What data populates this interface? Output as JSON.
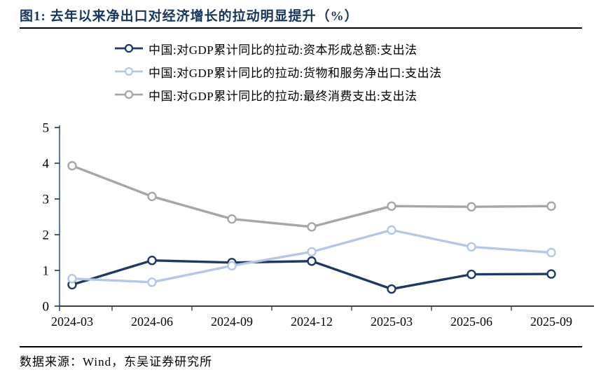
{
  "header": {
    "title": "图1:  去年以来净出口对经济增长的拉动明显提升（%）"
  },
  "footer": {
    "source": "数据来源：Wind，东吴证券研究所"
  },
  "chart_data": {
    "type": "line",
    "title": "去年以来净出口对经济增长的拉动明显提升（%）",
    "categories": [
      "2024-03",
      "2024-06",
      "2024-09",
      "2024-12",
      "2025-03",
      "2025-06",
      "2025-09"
    ],
    "series": [
      {
        "name": "中国:对GDP累计同比的拉动:资本形成总额:支出法",
        "color": "#1F3864",
        "values": [
          0.6,
          1.28,
          1.22,
          1.26,
          0.48,
          0.89,
          0.9
        ]
      },
      {
        "name": "中国:对GDP累计同比的拉动:货物和服务净出口:支出法",
        "color": "#B4C7E7",
        "values": [
          0.77,
          0.67,
          1.13,
          1.52,
          2.13,
          1.66,
          1.5
        ]
      },
      {
        "name": "中国:对GDP累计同比的拉动:最终消费支出:支出法",
        "color": "#A6A6A6",
        "values": [
          3.93,
          3.07,
          2.44,
          2.22,
          2.8,
          2.78,
          2.8
        ]
      }
    ],
    "xlabel": "",
    "ylabel": "",
    "ylim": [
      0,
      5
    ],
    "yticks": [
      0,
      1,
      2,
      3,
      4,
      5
    ],
    "grid": false,
    "legend_position": "top",
    "marker": "open-circle",
    "axis_colors": {
      "y_axis": "#2E5C8A",
      "x_axis": "#000000",
      "y_tick": "#17365D",
      "x_tick": "#404040"
    }
  }
}
